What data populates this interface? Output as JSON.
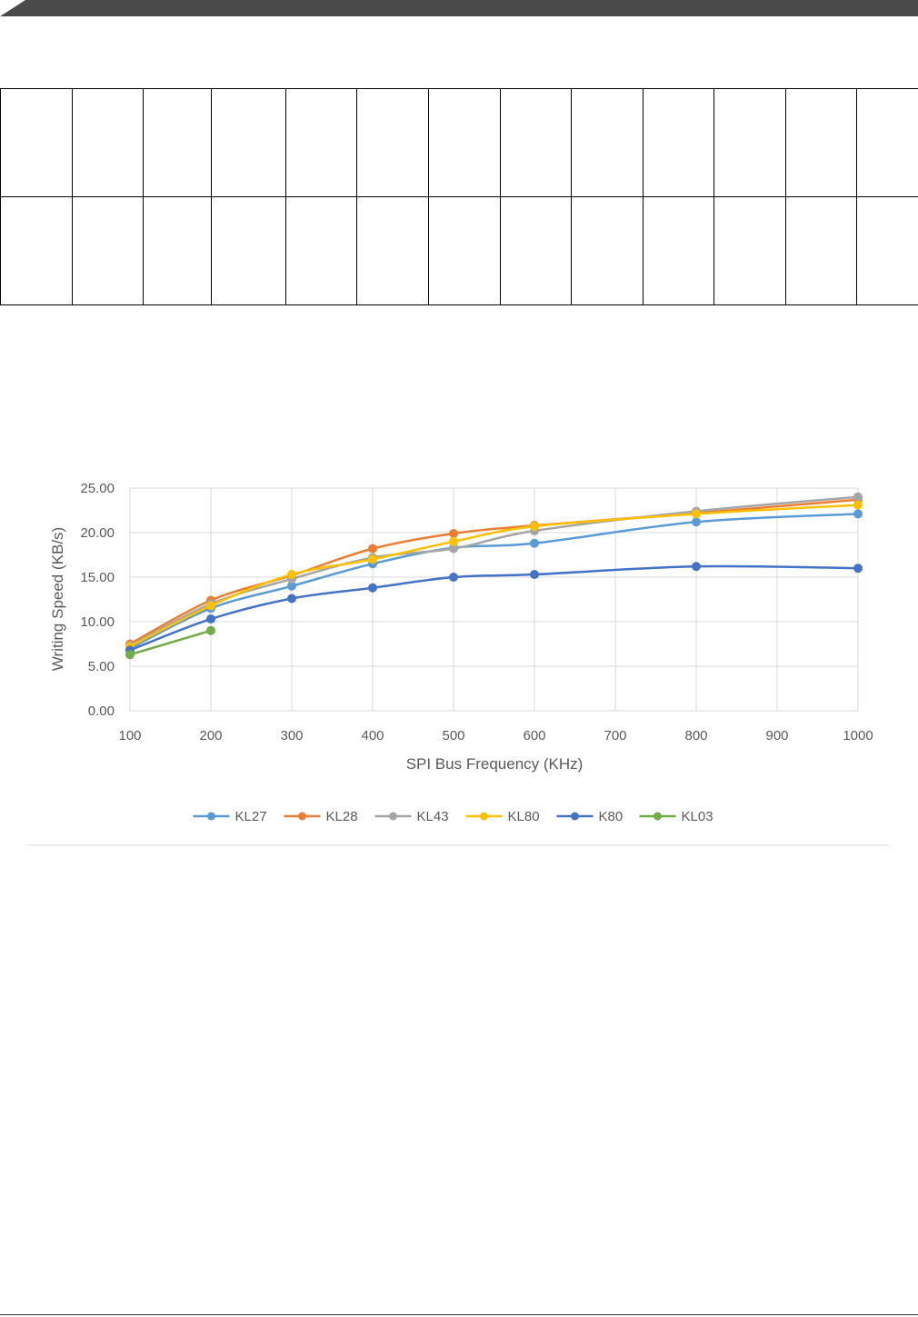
{
  "colors": {
    "page_background": "#ffffff",
    "header_band": "#4a4a4a",
    "table_border": "#000000",
    "grid": "#d9d9d9",
    "axis_text": "#595959"
  },
  "table": {
    "rows": [
      [
        "",
        "",
        "",
        "",
        "",
        "",
        "",
        "",
        "",
        "",
        "",
        "",
        ""
      ],
      [
        "",
        "",
        "",
        "",
        "",
        "",
        "",
        "",
        "",
        "",
        "",
        "",
        ""
      ]
    ]
  },
  "chart_data": {
    "type": "line",
    "title": "",
    "xlabel": "SPI Bus Frequency (KHz)",
    "ylabel": "Writing Speed (KB/s)",
    "xlim": [
      100,
      1000
    ],
    "ylim": [
      0,
      25
    ],
    "x_ticks": [
      100,
      200,
      300,
      400,
      500,
      600,
      700,
      800,
      900,
      1000
    ],
    "y_ticks": [
      "0.00",
      "5.00",
      "10.00",
      "15.00",
      "20.00",
      "25.00"
    ],
    "grid": true,
    "smooth": true,
    "legend_position": "bottom",
    "series": [
      {
        "name": "KL27",
        "color": "#5b9bd5",
        "x": [
          100,
          200,
          300,
          400,
          500,
          600,
          800,
          1000
        ],
        "y": [
          7.0,
          11.5,
          14.0,
          16.5,
          18.3,
          18.8,
          21.2,
          22.1
        ]
      },
      {
        "name": "KL28",
        "color": "#ed7d31",
        "x": [
          100,
          200,
          300,
          400,
          500,
          600,
          800,
          1000
        ],
        "y": [
          7.5,
          12.4,
          15.2,
          18.2,
          19.9,
          20.8,
          22.2,
          23.7
        ]
      },
      {
        "name": "KL43",
        "color": "#a5a5a5",
        "x": [
          100,
          200,
          300,
          400,
          500,
          600,
          800,
          1000
        ],
        "y": [
          7.3,
          12.0,
          14.8,
          17.2,
          18.2,
          20.2,
          22.4,
          24.0
        ]
      },
      {
        "name": "KL80",
        "color": "#ffc000",
        "x": [
          100,
          200,
          300,
          400,
          500,
          600,
          800,
          1000
        ],
        "y": [
          7.2,
          11.8,
          15.3,
          17.0,
          19.0,
          20.7,
          22.1,
          23.1
        ]
      },
      {
        "name": "K80",
        "color": "#4472c4",
        "x": [
          100,
          200,
          300,
          400,
          500,
          600,
          800,
          1000
        ],
        "y": [
          6.8,
          10.3,
          12.6,
          13.8,
          15.0,
          15.3,
          16.2,
          16.0
        ]
      },
      {
        "name": "KL03",
        "color": "#70ad47",
        "x": [
          100,
          200
        ],
        "y": [
          6.3,
          9.0
        ]
      }
    ]
  }
}
